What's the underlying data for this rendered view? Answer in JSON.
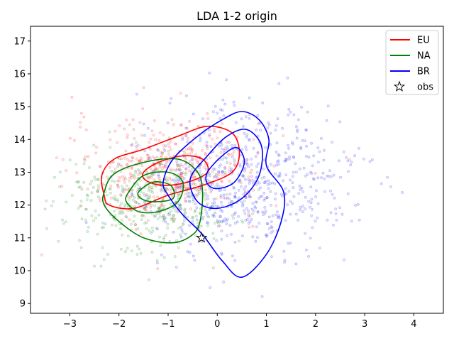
{
  "chart_data": {
    "type": "scatter",
    "title": "LDA 1-2 origin",
    "xlabel": "",
    "ylabel": "",
    "xlim": [
      -3.8,
      4.6
    ],
    "ylim": [
      8.7,
      17.45
    ],
    "xticks": [
      -3,
      -2,
      -1,
      0,
      1,
      2,
      3,
      4
    ],
    "yticks": [
      9,
      10,
      11,
      12,
      13,
      14,
      15,
      16,
      17
    ],
    "grid": false,
    "legend_position": "top-right",
    "series": [
      {
        "name": "EU",
        "color": "#ff0000",
        "scatter": {
          "center": [
            -1.0,
            13.1
          ],
          "spread": [
            0.95,
            0.75
          ],
          "count": 420
        },
        "contours": [
          [
            [
              -2.3,
              12.3
            ],
            [
              -2.35,
              12.9
            ],
            [
              -2.1,
              13.4
            ],
            [
              -1.5,
              13.7
            ],
            [
              -0.8,
              14.1
            ],
            [
              -0.2,
              14.4
            ],
            [
              0.3,
              14.2
            ],
            [
              0.45,
              13.6
            ],
            [
              0.3,
              13.0
            ],
            [
              -0.3,
              12.6
            ],
            [
              -1.0,
              12.3
            ],
            [
              -1.7,
              11.9
            ],
            [
              -2.2,
              12.0
            ]
          ],
          [
            [
              -1.5,
              13.0
            ],
            [
              -1.2,
              13.3
            ],
            [
              -0.7,
              13.5
            ],
            [
              -0.3,
              13.4
            ],
            [
              -0.2,
              13.0
            ],
            [
              -0.6,
              12.7
            ],
            [
              -1.1,
              12.6
            ],
            [
              -1.45,
              12.75
            ]
          ]
        ]
      },
      {
        "name": "NA",
        "color": "#008000",
        "scatter": {
          "center": [
            -1.4,
            12.1
          ],
          "spread": [
            0.85,
            0.75
          ],
          "count": 420
        },
        "contours": [
          [
            [
              -2.3,
              12.4
            ],
            [
              -2.1,
              12.95
            ],
            [
              -1.5,
              13.3
            ],
            [
              -0.8,
              13.4
            ],
            [
              -0.4,
              13.0
            ],
            [
              -0.3,
              12.4
            ],
            [
              -0.35,
              11.5
            ],
            [
              -0.5,
              11.1
            ],
            [
              -0.9,
              10.85
            ],
            [
              -1.5,
              11.0
            ],
            [
              -2.0,
              11.5
            ],
            [
              -2.3,
              12.0
            ]
          ],
          [
            [
              -1.8,
              12.4
            ],
            [
              -1.5,
              12.9
            ],
            [
              -1.0,
              13.0
            ],
            [
              -0.7,
              12.7
            ],
            [
              -0.8,
              12.1
            ],
            [
              -1.2,
              11.8
            ],
            [
              -1.6,
              11.8
            ],
            [
              -1.85,
              12.1
            ]
          ],
          [
            [
              -1.6,
              12.4
            ],
            [
              -1.3,
              12.7
            ],
            [
              -0.95,
              12.6
            ],
            [
              -0.9,
              12.2
            ],
            [
              -1.3,
              12.1
            ],
            [
              -1.55,
              12.2
            ]
          ]
        ]
      },
      {
        "name": "BR",
        "color": "#0000ff",
        "scatter": {
          "center": [
            0.55,
            12.7
          ],
          "spread": [
            1.1,
            1.1
          ],
          "count": 620
        },
        "contours": [
          [
            [
              -1.1,
              12.7
            ],
            [
              -0.9,
              13.4
            ],
            [
              -0.4,
              14.1
            ],
            [
              0.1,
              14.6
            ],
            [
              0.5,
              14.85
            ],
            [
              0.85,
              14.6
            ],
            [
              1.05,
              14.0
            ],
            [
              1.0,
              13.2
            ],
            [
              1.35,
              12.4
            ],
            [
              1.3,
              11.5
            ],
            [
              1.0,
              10.5
            ],
            [
              0.5,
              9.8
            ],
            [
              0.1,
              10.3
            ],
            [
              -0.3,
              11.1
            ],
            [
              -0.7,
              11.7
            ],
            [
              -1.0,
              12.3
            ]
          ],
          [
            [
              -0.55,
              12.8
            ],
            [
              -0.2,
              13.5
            ],
            [
              0.2,
              14.1
            ],
            [
              0.6,
              14.3
            ],
            [
              0.9,
              13.8
            ],
            [
              0.85,
              12.9
            ],
            [
              0.5,
              12.2
            ],
            [
              0.0,
              11.9
            ],
            [
              -0.4,
              12.1
            ]
          ],
          [
            [
              -0.2,
              13.0
            ],
            [
              0.1,
              13.5
            ],
            [
              0.4,
              13.75
            ],
            [
              0.55,
              13.3
            ],
            [
              0.35,
              12.7
            ],
            [
              0.0,
              12.5
            ],
            [
              -0.2,
              12.65
            ]
          ]
        ]
      },
      {
        "name": "obs",
        "marker": "star",
        "color": "#000000",
        "points": [
          [
            -0.32,
            11.0
          ]
        ]
      }
    ]
  }
}
